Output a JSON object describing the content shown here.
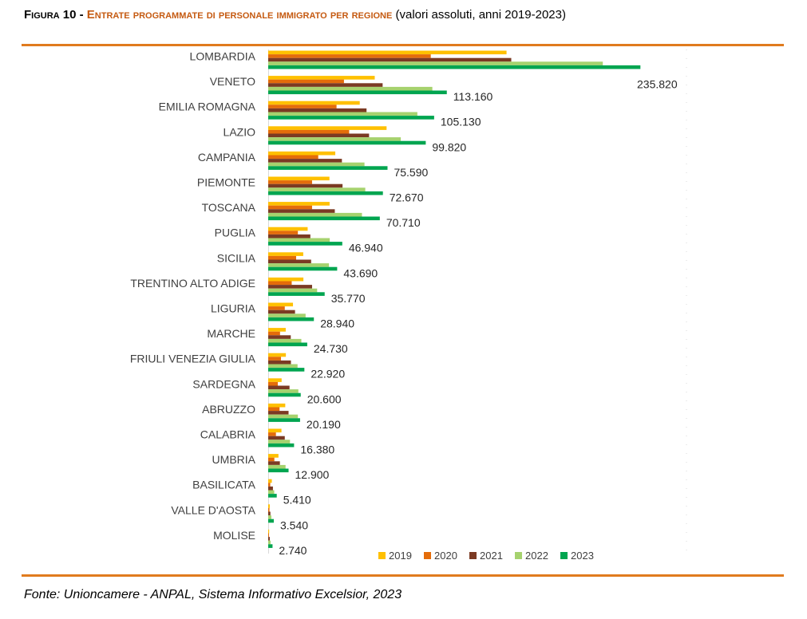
{
  "title": {
    "prefix": "Figura 10 - ",
    "caption": "Entrate programmate di personale immigrato per regione",
    "subtitle": " (valori assoluti, anni 2019-2023)"
  },
  "source": "Fonte: Unioncamere - ANPAL, Sistema Informativo Excelsior, 2023",
  "colors": {
    "rule": "#e07b1e",
    "caption": "#c55a11"
  },
  "chart_data": {
    "type": "bar",
    "orientation": "horizontal",
    "categories": [
      "LOMBARDIA",
      "VENETO",
      "EMILIA ROMAGNA",
      "LAZIO",
      "CAMPANIA",
      "PIEMONTE",
      "TOSCANA",
      "PUGLIA",
      "SICILIA",
      "TRENTINO ALTO ADIGE",
      "LIGURIA",
      "MARCHE",
      "FRIULI VENEZIA GIULIA",
      "SARDEGNA",
      "ABRUZZO",
      "CALABRIA",
      "UMBRIA",
      "BASILICATA",
      "VALLE D'AOSTA",
      "MOLISE"
    ],
    "series": [
      {
        "name": "2019",
        "color": "#ffc000",
        "values": [
          151000,
          67500,
          58000,
          75000,
          42500,
          38800,
          38900,
          25000,
          22200,
          22300,
          15700,
          11100,
          11200,
          8500,
          10800,
          8400,
          6500,
          2300,
          1000,
          600
        ]
      },
      {
        "name": "2020",
        "color": "#e46c0a",
        "values": [
          103000,
          48000,
          43300,
          51300,
          31700,
          27800,
          27800,
          18800,
          17700,
          14900,
          10500,
          7500,
          8100,
          6100,
          7200,
          4900,
          3900,
          1300,
          800,
          400
        ]
      },
      {
        "name": "2021",
        "color": "#7b3a23",
        "values": [
          154000,
          72500,
          62300,
          63900,
          46700,
          47100,
          42200,
          26700,
          27200,
          27800,
          17000,
          14300,
          14400,
          13500,
          12900,
          10500,
          7400,
          3000,
          1400,
          1000
        ]
      },
      {
        "name": "2022",
        "color": "#a6d26e",
        "values": [
          212000,
          104000,
          94500,
          84000,
          61000,
          61500,
          59400,
          39000,
          38500,
          31000,
          23700,
          21000,
          18600,
          19100,
          18800,
          13800,
          11000,
          3800,
          2000,
          1500
        ]
      },
      {
        "name": "2023",
        "color": "#00a550",
        "values": [
          235820,
          113160,
          105130,
          99820,
          75590,
          72670,
          70710,
          46940,
          43690,
          35770,
          28940,
          24730,
          22920,
          20600,
          20190,
          16380,
          12900,
          5410,
          3540,
          2740
        ]
      }
    ],
    "data_labels": [
      "235.820",
      "113.160",
      "105.130",
      "99.820",
      "75.590",
      "72.670",
      "70.710",
      "46.940",
      "43.690",
      "35.770",
      "28.940",
      "24.730",
      "22.920",
      "20.600",
      "20.190",
      "16.380",
      "12.900",
      "5.410",
      "3.540",
      "2.740"
    ],
    "labelled_series": "2023",
    "xlim": [
      0,
      265000
    ],
    "legend_position": "bottom-right",
    "grid": false
  }
}
